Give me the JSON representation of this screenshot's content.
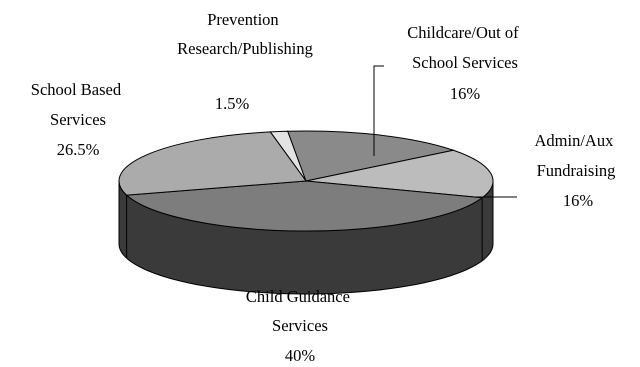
{
  "chart_data": {
    "type": "pie",
    "style": "3d-pie",
    "slices": [
      {
        "name": "Prevention Research/Publishing",
        "label_lines": [
          "Prevention",
          "Research/Publishing"
        ],
        "value_label": "1.5%",
        "value": 1.5,
        "color": "#e3e3e3"
      },
      {
        "name": "Childcare/Out of School Services",
        "label_lines": [
          "Childcare/Out of",
          "School Services"
        ],
        "value_label": "16%",
        "value": 16,
        "color": "#8a8a8a"
      },
      {
        "name": "Admin/Aux Fundraising",
        "label_lines": [
          "Admin/Aux",
          "Fundraising"
        ],
        "value_label": "16%",
        "value": 16,
        "color": "#bcbcbc"
      },
      {
        "name": "Child Guidance Services",
        "label_lines": [
          "Child Guidance",
          "Services"
        ],
        "value_label": "40%",
        "value": 40,
        "color": "#7d7d7d"
      },
      {
        "name": "School Based Services",
        "label_lines": [
          "School Based",
          "Services"
        ],
        "value_label": "26.5%",
        "value": 26.5,
        "color": "#ababab"
      }
    ],
    "side_color": "#3a3a3a",
    "legend": "none"
  }
}
